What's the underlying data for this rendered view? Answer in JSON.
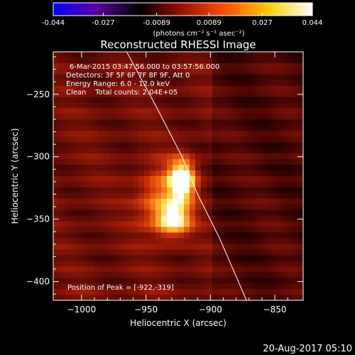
{
  "colorbar": {
    "ticks": [
      "-0.044",
      "-0.027",
      "-0.0089",
      "0.0089",
      "0.027",
      "0.044"
    ],
    "tick_values": [
      -0.044,
      -0.027,
      -0.0089,
      0.0089,
      0.027,
      0.044
    ],
    "range": [
      -0.044,
      0.044
    ],
    "units": "(photons cm⁻² s⁻¹ asec⁻²)",
    "colors": [
      "#0000ff",
      "#5a00a0",
      "#000000",
      "#a01000",
      "#ff5000",
      "#ffcc00",
      "#ffffff"
    ]
  },
  "chart_data": {
    "type": "heatmap",
    "title": "Reconstructed RHESSI Image",
    "xlabel": "Heliocentric X (arcsec)",
    "ylabel": "Heliocentric Y (arcsec)",
    "xlim": [
      -1022,
      -828
    ],
    "ylim": [
      -415,
      -216
    ],
    "xticks": [
      -1000,
      -950,
      -900,
      -850
    ],
    "xtick_labels": [
      "−1000",
      "−950",
      "−900",
      "−850"
    ],
    "yticks": [
      -250,
      -300,
      -350,
      -400
    ],
    "ytick_labels": [
      "−250",
      "−300",
      "−350",
      "−400"
    ],
    "sources": [
      {
        "x": -922,
        "y": -319,
        "peak": 0.044,
        "sx": 7,
        "sy": 11
      },
      {
        "x": -928,
        "y": -350,
        "peak": 0.032,
        "sx": 9,
        "sy": 9
      },
      {
        "x": -940,
        "y": -335,
        "peak": 0.018,
        "sx": 12,
        "sy": 18
      }
    ],
    "limb": [
      [
        -965,
        -216
      ],
      [
        -942,
        -260
      ],
      [
        -922,
        -300
      ],
      [
        -910,
        -330
      ],
      [
        -893,
        -365
      ],
      [
        -872,
        -415
      ]
    ],
    "annotations": {
      "time": "6-Mar-2015 03:47:56.000 to 03:57:56.000",
      "detectors": "Detectors: 3F 5F 6F 7F 8F 9F, Att 0",
      "energy": "Energy Range: 6.0 - 12.0 keV",
      "clean": "Clean    Total counts: 2.04E+05",
      "peak": "Position of Peak = [-922,-319]"
    }
  },
  "footer": {
    "timestamp": "20-Aug-2017 05:10"
  }
}
